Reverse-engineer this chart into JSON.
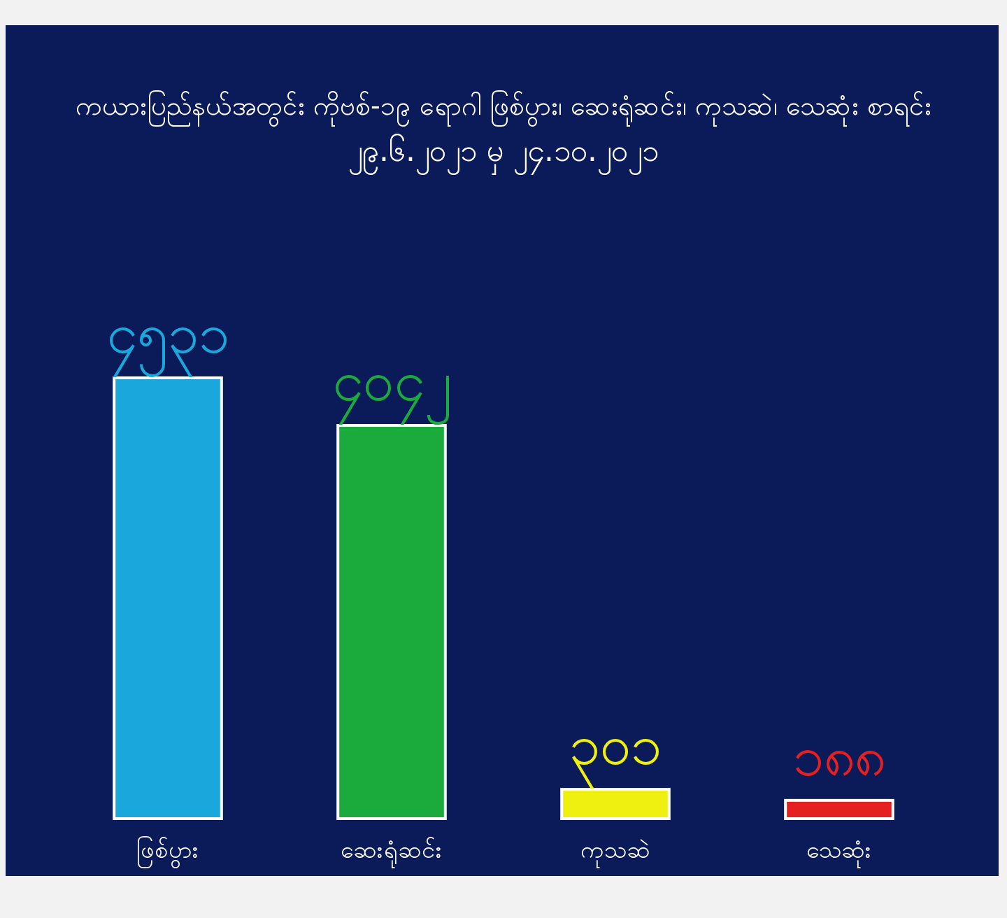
{
  "chart_data": {
    "type": "bar",
    "title": "ကယားပြည်နယ်အတွင်း ကိုဗစ်-၁၉ ရောဂါ ဖြစ်ပွား၊ ဆေးရုံဆင်း၊ ကုသဆဲ၊ သေဆုံး စာရင်း",
    "subtitle": "၂၉.၆.၂၀၂၁ မှ ၂၄.၁၀.၂၀၂၁",
    "categories": [
      "ဖြစ်ပွား",
      "ဆေးရုံဆင်း",
      "ကုသဆဲ",
      "သေဆုံး"
    ],
    "values": [
      4531,
      4042,
      301,
      188
    ],
    "value_labels": [
      "၄၅၃၁",
      "၄၀၄၂",
      "၃၀၁",
      "၁၈၈"
    ],
    "colors": [
      "#1aa8dc",
      "#1aab3c",
      "#f0f010",
      "#e42020"
    ]
  }
}
